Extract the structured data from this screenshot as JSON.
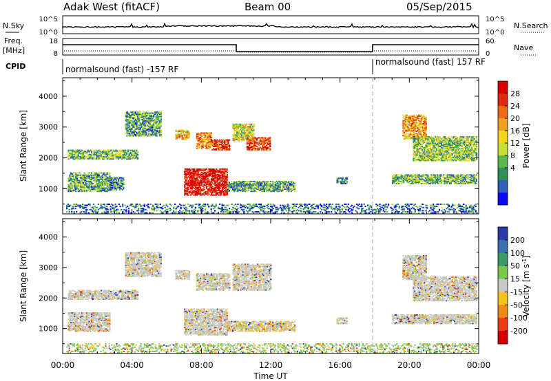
{
  "header": {
    "station": "Adak West (fitACF)",
    "beam": "Beam 00",
    "date": "05/Sep/2015"
  },
  "noise_panel": {
    "left_label": "N.Sky",
    "right_label": "N.Search",
    "left_ticks": [
      "10^5",
      "10^0"
    ],
    "right_ticks": [
      "10^5",
      "10^0"
    ]
  },
  "freq_panel": {
    "left_label_1": "Freq.",
    "left_label_2": "[MHz]",
    "right_label": "Nave",
    "left_ticks": [
      "18",
      "8"
    ],
    "right_ticks": [
      "60",
      "0"
    ]
  },
  "cpid_panel": {
    "label": "CPID",
    "segments": [
      {
        "text": "normalsound (fast) -157 RF",
        "start_h": 0
      },
      {
        "text": "normalsound (fast) 157 RF",
        "start_h": 18
      }
    ]
  },
  "chart_data": [
    {
      "type": "heatmap",
      "name": "power",
      "ylabel": "Slant Range [km]",
      "xlabel": "",
      "ylim": [
        180,
        4600
      ],
      "yticks": [
        "1000",
        "2000",
        "3000",
        "4000"
      ],
      "xlim_hours": [
        0,
        24
      ],
      "colorbar_label": "Power [dB]",
      "colorbar_ticks": [
        "4",
        "8",
        "12",
        "16",
        "20",
        "24",
        "28"
      ],
      "colorbar_colors": [
        "#0a0af0",
        "#2f5fb8",
        "#2e8f5a",
        "#5cb84a",
        "#c8e033",
        "#f5d21e",
        "#f0a020",
        "#ee6a14",
        "#e02a10",
        "#d80000"
      ],
      "echo_regions": [
        {
          "t0": 0.3,
          "t1": 4.3,
          "r0": 1950,
          "r1": 2250,
          "level": 0.35
        },
        {
          "t0": 3.6,
          "t1": 5.7,
          "r0": 2700,
          "r1": 3500,
          "level": 0.3
        },
        {
          "t0": 0.3,
          "t1": 2.7,
          "r0": 900,
          "r1": 1500,
          "level": 0.3
        },
        {
          "t0": 2.7,
          "t1": 3.5,
          "r0": 950,
          "r1": 1350,
          "level": 0.25
        },
        {
          "t0": 6.5,
          "t1": 7.3,
          "r0": 2600,
          "r1": 2900,
          "level": 0.6
        },
        {
          "t0": 7.7,
          "t1": 8.6,
          "r0": 2300,
          "r1": 2800,
          "level": 0.7
        },
        {
          "t0": 8.6,
          "t1": 9.6,
          "r0": 2250,
          "r1": 2600,
          "level": 0.85
        },
        {
          "t0": 9.8,
          "t1": 11.0,
          "r0": 2550,
          "r1": 3100,
          "level": 0.5
        },
        {
          "t0": 10.6,
          "t1": 12.0,
          "r0": 2250,
          "r1": 2650,
          "level": 0.8
        },
        {
          "t0": 7.0,
          "t1": 9.5,
          "r0": 780,
          "r1": 1650,
          "level": 0.95
        },
        {
          "t0": 9.5,
          "t1": 13.4,
          "r0": 900,
          "r1": 1250,
          "level": 0.3
        },
        {
          "t0": 15.8,
          "t1": 16.4,
          "r0": 1150,
          "r1": 1350,
          "level": 0.2
        },
        {
          "t0": 19.6,
          "t1": 21.0,
          "r0": 2600,
          "r1": 3400,
          "level": 0.65
        },
        {
          "t0": 20.2,
          "t1": 23.9,
          "r0": 1900,
          "r1": 2700,
          "level": 0.4
        },
        {
          "t0": 19.0,
          "t1": 23.9,
          "r0": 1150,
          "r1": 1450,
          "level": 0.35
        },
        {
          "t0": 0.2,
          "t1": 23.9,
          "r0": 200,
          "r1": 500,
          "level": 0.2
        }
      ]
    },
    {
      "type": "heatmap",
      "name": "velocity",
      "ylabel": "Slant Range [km]",
      "xlabel": "Time UT",
      "ylim": [
        180,
        4600
      ],
      "yticks": [
        "1000",
        "2000",
        "3000",
        "4000"
      ],
      "xticks": [
        "00:00",
        "04:00",
        "08:00",
        "12:00",
        "16:00",
        "20:00",
        "00:00"
      ],
      "xlim_hours": [
        0,
        24
      ],
      "colorbar_label": "Velocity [m s^-1]",
      "colorbar_ticks": [
        "200",
        "100",
        "50",
        "15",
        "-15",
        "-50",
        "-100",
        "-200"
      ],
      "colorbar_colors": [
        "#2a3aa8",
        "#3e6fb0",
        "#3a9a6a",
        "#7ac84a",
        "#c8c8c8",
        "#f2c21e",
        "#f08a14",
        "#ec3a12",
        "#d40000"
      ],
      "echo_regions": [
        {
          "t0": 0.3,
          "t1": 4.3,
          "r0": 1950,
          "r1": 2250,
          "level": 0.45
        },
        {
          "t0": 3.6,
          "t1": 5.7,
          "r0": 2700,
          "r1": 3500,
          "level": 0.45
        },
        {
          "t0": 0.3,
          "t1": 2.7,
          "r0": 900,
          "r1": 1500,
          "level": 0.45
        },
        {
          "t0": 6.5,
          "t1": 7.3,
          "r0": 2600,
          "r1": 2900,
          "level": 0.45
        },
        {
          "t0": 7.7,
          "t1": 9.6,
          "r0": 2250,
          "r1": 2800,
          "level": 0.45
        },
        {
          "t0": 9.8,
          "t1": 12.0,
          "r0": 2250,
          "r1": 3100,
          "level": 0.45
        },
        {
          "t0": 7.0,
          "t1": 9.5,
          "r0": 780,
          "r1": 1650,
          "level": 0.45
        },
        {
          "t0": 9.5,
          "t1": 13.4,
          "r0": 900,
          "r1": 1250,
          "level": 0.6
        },
        {
          "t0": 15.8,
          "t1": 16.4,
          "r0": 1150,
          "r1": 1350,
          "level": 0.45
        },
        {
          "t0": 19.6,
          "t1": 21.0,
          "r0": 2600,
          "r1": 3400,
          "level": 0.45
        },
        {
          "t0": 20.2,
          "t1": 23.9,
          "r0": 1900,
          "r1": 2700,
          "level": 0.45
        },
        {
          "t0": 19.0,
          "t1": 23.9,
          "r0": 1150,
          "r1": 1450,
          "level": 0.45
        },
        {
          "t0": 0.2,
          "t1": 23.9,
          "r0": 200,
          "r1": 500,
          "level": 0.35
        }
      ]
    }
  ]
}
